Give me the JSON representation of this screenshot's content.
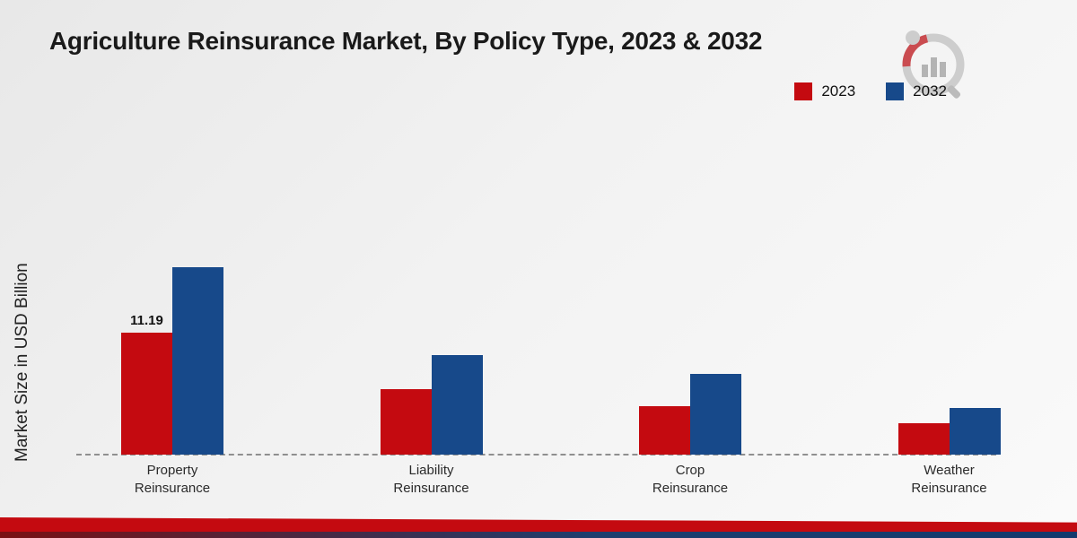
{
  "title": "Agriculture Reinsurance Market, By Policy Type, 2023 & 2032",
  "y_axis_label": "Market Size in USD Billion",
  "legend": [
    {
      "label": "2023",
      "color": "#c40a10"
    },
    {
      "label": "2032",
      "color": "#17498a"
    }
  ],
  "chart_data": {
    "type": "bar",
    "categories": [
      "Property\nReinsurance",
      "Liability\nReinsurance",
      "Crop\nReinsurance",
      "Weather\nReinsurance"
    ],
    "series": [
      {
        "name": "2023",
        "color": "#c40a10",
        "values": [
          11.19,
          6.0,
          4.45,
          2.9
        ]
      },
      {
        "name": "2032",
        "color": "#17498a",
        "values": [
          17.2,
          9.15,
          7.4,
          4.3
        ]
      }
    ],
    "value_labels": [
      {
        "category_index": 0,
        "series_index": 0,
        "text": "11.19"
      }
    ],
    "title": "Agriculture Reinsurance Market, By Policy Type, 2023 & 2032",
    "xlabel": "",
    "ylabel": "Market Size in USD Billion",
    "ylim": [
      0,
      18
    ],
    "grid": false,
    "legend_position": "top-right"
  }
}
